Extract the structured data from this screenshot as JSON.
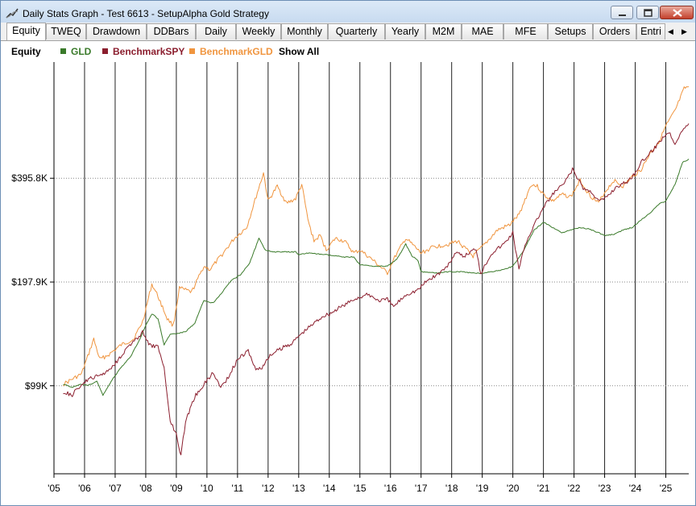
{
  "window": {
    "title": "Daily Stats Graph - Test 6613 - SetupAlpha Gold Strategy"
  },
  "tabs": [
    {
      "label": "Equity",
      "active": true
    },
    {
      "label": "TWEQ"
    },
    {
      "label": "Drawdown"
    },
    {
      "label": "DDBars"
    },
    {
      "label": "Daily"
    },
    {
      "label": "Weekly"
    },
    {
      "label": "Monthly"
    },
    {
      "label": "Quarterly"
    },
    {
      "label": "Yearly"
    },
    {
      "label": "M2M"
    },
    {
      "label": "MAE"
    },
    {
      "label": "MFE"
    },
    {
      "label": "Setups"
    },
    {
      "label": "Orders"
    },
    {
      "label": "Entri"
    }
  ],
  "legend": {
    "title": "Equity",
    "items": [
      {
        "label": "GLD",
        "color": "#3a7a2a"
      },
      {
        "label": "BenchmarkSPY",
        "color": "#8b1e2e"
      },
      {
        "label": "BenchmarkGLD",
        "color": "#f0953f"
      }
    ],
    "show_all": "Show All"
  },
  "chart_data": {
    "type": "line",
    "y_scale": "log",
    "ylim": [
      55000,
      860000
    ],
    "y_ticks": [
      {
        "value": 99000,
        "label": "$99K"
      },
      {
        "value": 197900,
        "label": "$197.9K"
      },
      {
        "value": 395800,
        "label": "$395.8K"
      }
    ],
    "xlim": [
      2005.0,
      2025.75
    ],
    "x_ticks": [
      {
        "value": 2005,
        "label": "'05"
      },
      {
        "value": 2006,
        "label": "'06"
      },
      {
        "value": 2007,
        "label": "'07"
      },
      {
        "value": 2008,
        "label": "'08"
      },
      {
        "value": 2009,
        "label": "'09"
      },
      {
        "value": 2010,
        "label": "'10"
      },
      {
        "value": 2011,
        "label": "'11"
      },
      {
        "value": 2012,
        "label": "'12"
      },
      {
        "value": 2013,
        "label": "'13"
      },
      {
        "value": 2014,
        "label": "'14"
      },
      {
        "value": 2015,
        "label": "'15"
      },
      {
        "value": 2016,
        "label": "'16"
      },
      {
        "value": 2017,
        "label": "'17"
      },
      {
        "value": 2018,
        "label": "'18"
      },
      {
        "value": 2019,
        "label": "'19"
      },
      {
        "value": 2020,
        "label": "'20"
      },
      {
        "value": 2021,
        "label": "'21"
      },
      {
        "value": 2022,
        "label": "'22"
      },
      {
        "value": 2023,
        "label": "'23"
      },
      {
        "value": 2024,
        "label": "'24"
      },
      {
        "value": 2025,
        "label": "'25"
      }
    ],
    "series": [
      {
        "name": "BenchmarkGLD",
        "color": "#f0953f",
        "points": [
          [
            2005.3,
            100000
          ],
          [
            2005.9,
            107000
          ],
          [
            2006.3,
            135000
          ],
          [
            2006.5,
            118000
          ],
          [
            2006.8,
            122000
          ],
          [
            2007.2,
            130000
          ],
          [
            2007.6,
            135000
          ],
          [
            2007.9,
            152000
          ],
          [
            2008.2,
            195000
          ],
          [
            2008.4,
            180000
          ],
          [
            2008.7,
            155000
          ],
          [
            2008.9,
            148000
          ],
          [
            2009.1,
            190000
          ],
          [
            2009.5,
            185000
          ],
          [
            2009.9,
            220000
          ],
          [
            2010.1,
            215000
          ],
          [
            2010.5,
            238000
          ],
          [
            2010.9,
            265000
          ],
          [
            2011.3,
            285000
          ],
          [
            2011.65,
            360000
          ],
          [
            2011.85,
            410000
          ],
          [
            2012.0,
            340000
          ],
          [
            2012.3,
            375000
          ],
          [
            2012.6,
            335000
          ],
          [
            2012.9,
            345000
          ],
          [
            2013.1,
            380000
          ],
          [
            2013.3,
            300000
          ],
          [
            2013.5,
            260000
          ],
          [
            2013.7,
            270000
          ],
          [
            2013.9,
            245000
          ],
          [
            2014.2,
            265000
          ],
          [
            2014.5,
            260000
          ],
          [
            2014.8,
            240000
          ],
          [
            2015.0,
            245000
          ],
          [
            2015.4,
            230000
          ],
          [
            2015.9,
            210000
          ],
          [
            2016.1,
            230000
          ],
          [
            2016.5,
            265000
          ],
          [
            2016.8,
            250000
          ],
          [
            2017.0,
            240000
          ],
          [
            2017.4,
            250000
          ],
          [
            2017.9,
            255000
          ],
          [
            2018.2,
            260000
          ],
          [
            2018.7,
            235000
          ],
          [
            2019.0,
            250000
          ],
          [
            2019.5,
            280000
          ],
          [
            2019.9,
            290000
          ],
          [
            2020.2,
            310000
          ],
          [
            2020.6,
            380000
          ],
          [
            2020.8,
            375000
          ],
          [
            2021.0,
            355000
          ],
          [
            2021.3,
            340000
          ],
          [
            2021.6,
            355000
          ],
          [
            2021.9,
            350000
          ],
          [
            2022.2,
            390000
          ],
          [
            2022.5,
            355000
          ],
          [
            2022.8,
            335000
          ],
          [
            2023.0,
            360000
          ],
          [
            2023.3,
            390000
          ],
          [
            2023.6,
            375000
          ],
          [
            2023.9,
            400000
          ],
          [
            2024.2,
            420000
          ],
          [
            2024.5,
            470000
          ],
          [
            2024.8,
            510000
          ],
          [
            2025.0,
            560000
          ],
          [
            2025.3,
            620000
          ],
          [
            2025.6,
            720000
          ],
          [
            2025.75,
            730000
          ]
        ]
      },
      {
        "name": "GLD",
        "color": "#3a7a2a",
        "points": [
          [
            2005.3,
            100000
          ],
          [
            2005.6,
            98000
          ],
          [
            2005.9,
            100000
          ],
          [
            2006.1,
            99000
          ],
          [
            2006.4,
            102000
          ],
          [
            2006.6,
            93000
          ],
          [
            2006.9,
            103000
          ],
          [
            2007.2,
            112000
          ],
          [
            2007.5,
            120000
          ],
          [
            2007.8,
            135000
          ],
          [
            2008.0,
            148000
          ],
          [
            2008.2,
            160000
          ],
          [
            2008.4,
            155000
          ],
          [
            2008.6,
            130000
          ],
          [
            2008.8,
            140000
          ],
          [
            2009.0,
            140000
          ],
          [
            2009.3,
            142000
          ],
          [
            2009.6,
            150000
          ],
          [
            2009.9,
            175000
          ],
          [
            2010.2,
            172000
          ],
          [
            2010.5,
            185000
          ],
          [
            2010.8,
            200000
          ],
          [
            2011.1,
            208000
          ],
          [
            2011.4,
            225000
          ],
          [
            2011.7,
            265000
          ],
          [
            2011.9,
            245000
          ],
          [
            2012.2,
            242000
          ],
          [
            2012.5,
            242000
          ],
          [
            2012.9,
            242000
          ],
          [
            2013.0,
            238000
          ],
          [
            2013.3,
            240000
          ],
          [
            2013.8,
            238000
          ],
          [
            2014.1,
            236000
          ],
          [
            2014.5,
            234000
          ],
          [
            2014.8,
            234000
          ],
          [
            2015.0,
            222000
          ],
          [
            2015.5,
            220000
          ],
          [
            2015.9,
            220000
          ],
          [
            2016.2,
            230000
          ],
          [
            2016.5,
            255000
          ],
          [
            2016.7,
            236000
          ],
          [
            2016.9,
            228000
          ],
          [
            2017.0,
            212000
          ],
          [
            2017.5,
            210000
          ],
          [
            2017.9,
            212000
          ],
          [
            2018.3,
            212000
          ],
          [
            2018.7,
            210000
          ],
          [
            2019.0,
            210000
          ],
          [
            2019.3,
            212000
          ],
          [
            2019.7,
            215000
          ],
          [
            2020.0,
            220000
          ],
          [
            2020.3,
            240000
          ],
          [
            2020.7,
            280000
          ],
          [
            2021.0,
            295000
          ],
          [
            2021.3,
            285000
          ],
          [
            2021.6,
            275000
          ],
          [
            2021.9,
            280000
          ],
          [
            2022.2,
            285000
          ],
          [
            2022.5,
            282000
          ],
          [
            2022.8,
            275000
          ],
          [
            2023.0,
            270000
          ],
          [
            2023.3,
            272000
          ],
          [
            2023.6,
            280000
          ],
          [
            2023.9,
            285000
          ],
          [
            2024.2,
            300000
          ],
          [
            2024.5,
            315000
          ],
          [
            2024.8,
            335000
          ],
          [
            2025.0,
            340000
          ],
          [
            2025.3,
            380000
          ],
          [
            2025.55,
            440000
          ],
          [
            2025.75,
            450000
          ]
        ]
      },
      {
        "name": "BenchmarkSPY",
        "color": "#8b1e2e",
        "points": [
          [
            2005.3,
            95000
          ],
          [
            2005.6,
            93000
          ],
          [
            2005.9,
            100000
          ],
          [
            2006.2,
            104000
          ],
          [
            2006.5,
            106000
          ],
          [
            2006.8,
            110000
          ],
          [
            2007.1,
            118000
          ],
          [
            2007.4,
            128000
          ],
          [
            2007.7,
            135000
          ],
          [
            2007.9,
            142000
          ],
          [
            2008.1,
            130000
          ],
          [
            2008.4,
            128000
          ],
          [
            2008.6,
            112000
          ],
          [
            2008.8,
            78000
          ],
          [
            2009.0,
            72000
          ],
          [
            2009.15,
            62000
          ],
          [
            2009.3,
            78000
          ],
          [
            2009.6,
            92000
          ],
          [
            2009.9,
            100000
          ],
          [
            2010.2,
            108000
          ],
          [
            2010.45,
            98000
          ],
          [
            2010.7,
            105000
          ],
          [
            2011.0,
            118000
          ],
          [
            2011.35,
            125000
          ],
          [
            2011.6,
            110000
          ],
          [
            2011.8,
            112000
          ],
          [
            2012.1,
            122000
          ],
          [
            2012.5,
            128000
          ],
          [
            2012.8,
            132000
          ],
          [
            2013.0,
            138000
          ],
          [
            2013.4,
            148000
          ],
          [
            2013.8,
            158000
          ],
          [
            2014.0,
            160000
          ],
          [
            2014.5,
            170000
          ],
          [
            2014.9,
            178000
          ],
          [
            2015.3,
            182000
          ],
          [
            2015.6,
            175000
          ],
          [
            2015.9,
            176000
          ],
          [
            2016.1,
            168000
          ],
          [
            2016.5,
            182000
          ],
          [
            2016.9,
            188000
          ],
          [
            2017.2,
            200000
          ],
          [
            2017.6,
            210000
          ],
          [
            2017.9,
            222000
          ],
          [
            2018.1,
            240000
          ],
          [
            2018.4,
            235000
          ],
          [
            2018.8,
            248000
          ],
          [
            2018.95,
            210000
          ],
          [
            2019.3,
            240000
          ],
          [
            2019.7,
            255000
          ],
          [
            2020.0,
            275000
          ],
          [
            2020.2,
            215000
          ],
          [
            2020.4,
            255000
          ],
          [
            2020.7,
            290000
          ],
          [
            2020.95,
            320000
          ],
          [
            2021.3,
            355000
          ],
          [
            2021.7,
            385000
          ],
          [
            2021.95,
            420000
          ],
          [
            2022.3,
            370000
          ],
          [
            2022.6,
            360000
          ],
          [
            2022.8,
            340000
          ],
          [
            2023.0,
            345000
          ],
          [
            2023.4,
            375000
          ],
          [
            2023.7,
            385000
          ],
          [
            2023.9,
            400000
          ],
          [
            2024.2,
            440000
          ],
          [
            2024.6,
            480000
          ],
          [
            2024.9,
            520000
          ],
          [
            2025.1,
            540000
          ],
          [
            2025.3,
            500000
          ],
          [
            2025.5,
            540000
          ],
          [
            2025.75,
            570000
          ]
        ]
      }
    ]
  }
}
